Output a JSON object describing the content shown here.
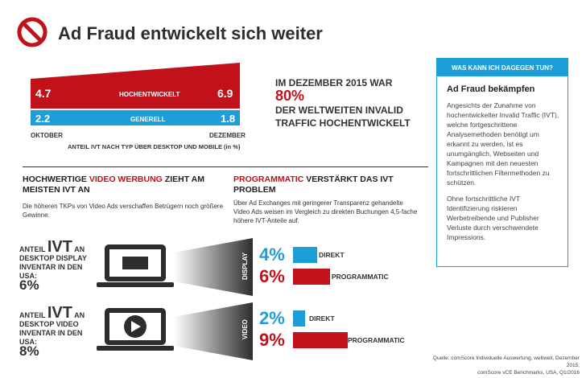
{
  "header": {
    "title": "Ad Fraud entwickelt sich weiter"
  },
  "chart_data": {
    "type": "area",
    "categories": [
      "OKTOBER",
      "DEZEMBER"
    ],
    "series": [
      {
        "name": "HOCHENTWICKELT",
        "values": [
          4.7,
          6.9
        ],
        "color": "#c1121c"
      },
      {
        "name": "GENERELL",
        "values": [
          2.2,
          1.8
        ],
        "color": "#1e9ed9"
      }
    ],
    "value_labels": {
      "hoch_start": "4.7",
      "hoch_end": "6.9",
      "gen_start": "2.2",
      "gen_end": "1.8"
    },
    "caption": "ANTEIL IVT NACH TYP ÜBER DESKTOP UND MOBILE (in %)"
  },
  "stat": {
    "prefix": "IM DEZEMBER 2015 WAR ",
    "percent": "80%",
    "suffix": "DER WELTWEITEN INVALID TRAFFIC HOCHENTWICKELT"
  },
  "sidebar": {
    "heading": "WAS KANN ICH DAGEGEN TUN?",
    "subheading": "Ad Fraud bekämpfen",
    "paragraph1": "Angesichts der Zunahme von hochentwickelter Invalid Traffic (IVT), welche fortgeschrittene Analysemethoden benötigt um erkannt zu werden, ist es unumgänglich, Webseiten und Kampagnen mit den neuesten fortschrittlichen Filtermethoden zu schützen.",
    "paragraph2": "Ohne fortschrittliche IVT Identifizierung riskieren Werbetreibende und Publisher Verluste durch verschwendete Impressions."
  },
  "video_section": {
    "head_part1": "HOCHWERTIGE ",
    "head_red": "VIDEO WERBUNG",
    "head_part2": " ZIEHT AM MEISTEN IVT AN",
    "body": "Die höheren TKPs von Video Ads verschaffen Betrügern noch größere Gewinne."
  },
  "programmatic_section": {
    "head_red": "PROGRAMMATIC",
    "head_rest": " VERSTÄRKT DAS IVT PROBLEM",
    "body": "Über Ad Exchanges mit geringerer Transparenz gehandelte Video Ads weisen im Vergleich zu direkten Buchungen 4,5-fache höhere IVT-Anteile auf."
  },
  "display_block": {
    "anteil": "ANTEIL",
    "ivt": "IVT",
    "an": "AN",
    "desc": "DESKTOP DISPLAY INVENTAR IN DEN USA:",
    "percent": "6%",
    "beam_label": "DISPLAY",
    "direkt_pct": "4%",
    "direkt_label": "DIREKT",
    "direkt_value": 4,
    "prog_pct": "6%",
    "prog_label": "PROGRAMMATIC",
    "prog_value": 6
  },
  "video_block": {
    "anteil": "ANTEIL",
    "ivt": "IVT",
    "an": "AN",
    "desc": "DESKTOP VIDEO INVENTAR IN DEN USA:",
    "percent": "8%",
    "beam_label": "VIDEO",
    "direkt_pct": "2%",
    "direkt_label": "DIREKT",
    "direkt_value": 2,
    "prog_pct": "9%",
    "prog_label": "PROGRAMMATIC",
    "prog_value": 9
  },
  "source": {
    "line1": "Quelle: comScore Individuelle Auswertung, weltweit, Dezember 2015;",
    "line2": "comScore vCE Benchmarks, USA, Q1/2016"
  },
  "colors": {
    "red": "#c1121c",
    "blue": "#1e9ed9",
    "dark": "#2d2d2d"
  }
}
